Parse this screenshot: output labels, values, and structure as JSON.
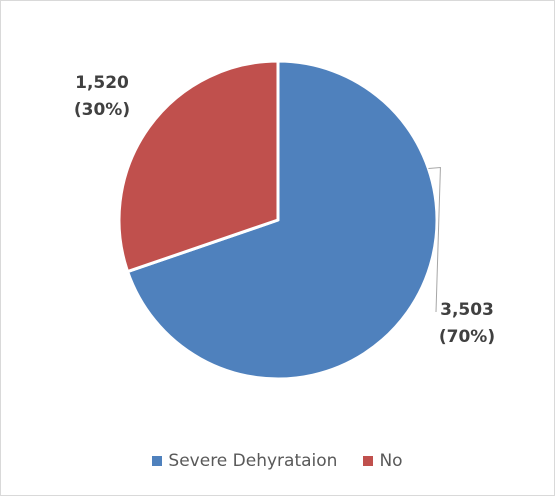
{
  "chart_data": {
    "type": "pie",
    "title": "",
    "categories": [
      "Severe Dehyrataion",
      "No"
    ],
    "values": [
      3503,
      1520
    ],
    "percent_labels": [
      "(70%)",
      "(30%)"
    ],
    "value_labels": [
      "3,503",
      "1,520"
    ],
    "colors": [
      "#4f81bd",
      "#c0504d"
    ],
    "start": "12 o'clock",
    "direction": "clockwise",
    "legend_placement": "bottom"
  }
}
